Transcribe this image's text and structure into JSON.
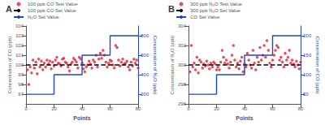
{
  "chart_data": [
    {
      "type": "scatter",
      "title": "A",
      "xlabel": "Points",
      "ylabel": "Concentration of CO (ppb)",
      "y2label": "Concentration of N₂O (ppb)",
      "xlim": [
        0,
        80
      ],
      "xticks": [
        0,
        20,
        40,
        60,
        80
      ],
      "ylim": [
        96,
        104
      ],
      "yticks": [
        97,
        98,
        99,
        100,
        101,
        102,
        103,
        104
      ],
      "y2lim": [
        100,
        900
      ],
      "y2ticks": [
        200,
        400,
        600,
        800
      ],
      "grid": false,
      "legend": "upper left",
      "series": [
        {
          "name": "100 ppb CO Test Value",
          "type": "scatter",
          "color": "#e8212e",
          "marker": "circle",
          "x": [
            1,
            2,
            3,
            4,
            5,
            6,
            7,
            8,
            9,
            10,
            11,
            12,
            13,
            14,
            15,
            16,
            17,
            18,
            19,
            20,
            21,
            22,
            23,
            24,
            25,
            26,
            27,
            28,
            29,
            30,
            31,
            32,
            33,
            34,
            35,
            36,
            37,
            38,
            39,
            40,
            41,
            42,
            43,
            44,
            45,
            46,
            47,
            48,
            49,
            50,
            51,
            52,
            53,
            54,
            55,
            56,
            57,
            58,
            59,
            60,
            61,
            62,
            63,
            64,
            65,
            66,
            67,
            68,
            69,
            70,
            71,
            72,
            73,
            74,
            75,
            76,
            77,
            78,
            79,
            80
          ],
          "values": [
            99.5,
            98.0,
            99.8,
            99.2,
            100.5,
            99.7,
            100.3,
            99.1,
            100.6,
            99.8,
            100.4,
            99.5,
            100.2,
            99.8,
            100.5,
            100.1,
            100.4,
            99.6,
            100.3,
            99.9,
            100.5,
            100.8,
            100.2,
            100.1,
            99.9,
            100.6,
            100.7,
            100.3,
            100.2,
            99.8,
            99.4,
            100.1,
            100.3,
            100.7,
            100.5,
            100.3,
            99.7,
            100.8,
            100.6,
            100.2,
            99.6,
            99.3,
            99.8,
            100.0,
            100.4,
            100.1,
            99.7,
            100.5,
            100.3,
            101.0,
            99.8,
            100.6,
            101.2,
            100.7,
            101.5,
            101.0,
            100.3,
            99.8,
            100.2,
            100.5,
            100.4,
            100.0,
            99.7,
            102.0,
            101.8,
            100.5,
            99.9,
            100.3,
            100.6,
            100.1,
            100.2,
            100.4,
            99.8,
            99.5,
            100.3,
            99.9,
            100.6,
            100.2,
            100.5,
            99.7
          ]
        },
        {
          "name": "100 ppb CO Set Value",
          "type": "line",
          "color": "#000000",
          "line_style": "dashed",
          "x": [
            0,
            80
          ],
          "values": [
            100,
            100
          ]
        },
        {
          "name": "N₂O Set Value",
          "type": "line",
          "color": "#2244cc",
          "line_style": "solid",
          "axis": "y2",
          "x": [
            0,
            20,
            20,
            40,
            40,
            60,
            60,
            80
          ],
          "values": [
            200,
            200,
            400,
            400,
            600,
            600,
            800,
            800
          ]
        }
      ]
    },
    {
      "type": "scatter",
      "title": "B",
      "xlabel": "Points",
      "ylabel": "Concentration of N₂O (ppb)",
      "y2label": "Concentration of CO (ppb)",
      "xlim": [
        0,
        80
      ],
      "xticks": [
        0,
        20,
        40,
        60,
        80
      ],
      "ylim": [
        296,
        304
      ],
      "yticks": [
        296,
        298,
        300,
        302,
        304
      ],
      "y2lim": [
        25,
        225
      ],
      "y2ticks": [
        50,
        100,
        150,
        200
      ],
      "grid": false,
      "legend": "upper left",
      "series": [
        {
          "name": "300 ppb N₂O Test Value",
          "type": "scatter",
          "color": "#e8212e",
          "marker": "circle",
          "x": [
            1,
            2,
            3,
            4,
            5,
            6,
            7,
            8,
            9,
            10,
            11,
            12,
            13,
            14,
            15,
            16,
            17,
            18,
            19,
            20,
            21,
            22,
            23,
            24,
            25,
            26,
            27,
            28,
            29,
            30,
            31,
            32,
            33,
            34,
            35,
            36,
            37,
            38,
            39,
            40,
            41,
            42,
            43,
            44,
            45,
            46,
            47,
            48,
            49,
            50,
            51,
            52,
            53,
            54,
            55,
            56,
            57,
            58,
            59,
            60,
            61,
            62,
            63,
            64,
            65,
            66,
            67,
            68,
            69,
            70,
            71,
            72,
            73,
            74,
            75,
            76,
            77,
            78,
            79,
            80
          ],
          "values": [
            299.3,
            302.0,
            299.8,
            300.2,
            299.5,
            300.8,
            299.2,
            300.5,
            300.3,
            299.7,
            300.1,
            299.9,
            300.4,
            300.0,
            299.6,
            300.2,
            299.8,
            300.3,
            300.1,
            299.5,
            299.8,
            299.5,
            300.3,
            301.5,
            300.8,
            300.2,
            300.5,
            300.1,
            299.7,
            300.3,
            301.0,
            302.0,
            300.5,
            299.8,
            300.2,
            299.6,
            300.4,
            300.8,
            299.3,
            300.1,
            299.8,
            301.2,
            300.5,
            300.0,
            299.7,
            301.5,
            300.2,
            299.5,
            300.8,
            300.3,
            301.8,
            300.5,
            301.0,
            302.0,
            300.8,
            302.5,
            301.5,
            300.2,
            299.8,
            300.5,
            301.0,
            301.5,
            302.0,
            301.8,
            300.5,
            300.8,
            300.3,
            299.8,
            301.2,
            300.5,
            300.8,
            301.5,
            300.2,
            300.5,
            300.1,
            299.8,
            300.4,
            300.0,
            299.6,
            300.3
          ]
        },
        {
          "name": "300 ppb N₂O Set Value",
          "type": "line",
          "color": "#000000",
          "line_style": "dashed",
          "x": [
            0,
            80
          ],
          "values": [
            300,
            300
          ]
        },
        {
          "name": "CO Set Value",
          "type": "line",
          "color": "#2244cc",
          "line_style": "solid",
          "axis": "y2",
          "x": [
            0,
            20,
            20,
            40,
            40,
            60,
            60,
            80
          ],
          "values": [
            50,
            50,
            100,
            100,
            150,
            150,
            200,
            200
          ]
        }
      ]
    }
  ]
}
